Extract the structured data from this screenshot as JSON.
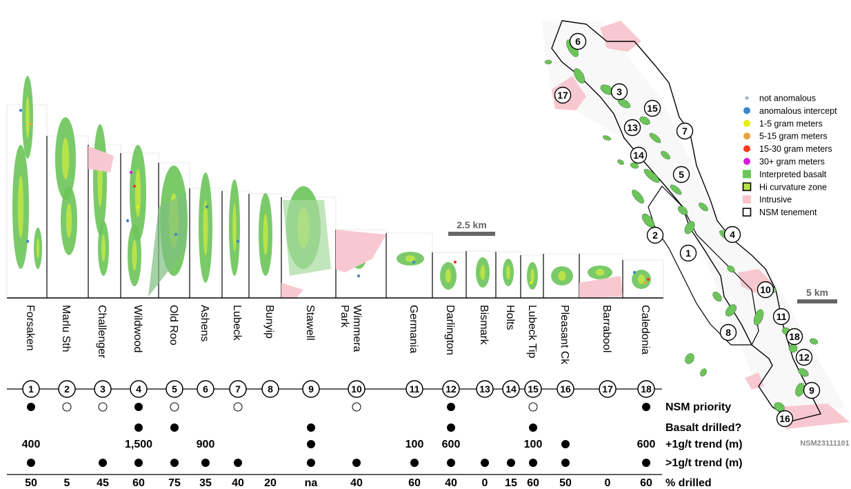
{
  "prospects": [
    {
      "num": "1",
      "name": "Forsaken",
      "priority": "filled",
      "basalt": "",
      "plus_trend": "400",
      "gt_trend": "filled",
      "pct": "50"
    },
    {
      "num": "2",
      "name": "Marlu Sth",
      "priority": "open",
      "basalt": "",
      "plus_trend": "",
      "gt_trend": "",
      "pct": "5"
    },
    {
      "num": "3",
      "name": "Challenger",
      "priority": "open",
      "basalt": "",
      "plus_trend": "",
      "gt_trend": "filled",
      "pct": "45"
    },
    {
      "num": "4",
      "name": "Wildwood",
      "priority": "filled",
      "basalt": "filled",
      "plus_trend": "1,500",
      "gt_trend": "filled",
      "pct": "60"
    },
    {
      "num": "5",
      "name": "Old Roo",
      "priority": "open",
      "basalt": "filled",
      "plus_trend": "",
      "gt_trend": "filled",
      "pct": "75"
    },
    {
      "num": "6",
      "name": "Ashens",
      "priority": "",
      "basalt": "",
      "plus_trend": "900",
      "gt_trend": "filled",
      "pct": "35"
    },
    {
      "num": "7",
      "name": "Lubeck",
      "priority": "open",
      "basalt": "",
      "plus_trend": "",
      "gt_trend": "filled",
      "pct": "40"
    },
    {
      "num": "8",
      "name": "Bunyip",
      "priority": "",
      "basalt": "",
      "plus_trend": "",
      "gt_trend": "",
      "pct": "20"
    },
    {
      "num": "9",
      "name": "Stawell",
      "priority": "",
      "basalt": "filled",
      "plus_trend": "dot",
      "gt_trend": "filled",
      "pct": "na"
    },
    {
      "num": "10",
      "name": "Wimmera Park",
      "priority": "open",
      "basalt": "",
      "plus_trend": "",
      "gt_trend": "filled",
      "pct": "40"
    },
    {
      "num": "11",
      "name": "Germania",
      "priority": "",
      "basalt": "",
      "plus_trend": "100",
      "gt_trend": "filled",
      "pct": "60"
    },
    {
      "num": "12",
      "name": "Darlington",
      "priority": "filled",
      "basalt": "filled",
      "plus_trend": "600",
      "gt_trend": "filled",
      "pct": "40"
    },
    {
      "num": "13",
      "name": "Bismark",
      "priority": "",
      "basalt": "",
      "plus_trend": "",
      "gt_trend": "filled",
      "pct": "0"
    },
    {
      "num": "14",
      "name": "Holts",
      "priority": "",
      "basalt": "",
      "plus_trend": "",
      "gt_trend": "filled",
      "pct": "15"
    },
    {
      "num": "15",
      "name": "Lubeck Tip",
      "priority": "open",
      "basalt": "filled",
      "plus_trend": "100",
      "gt_trend": "filled",
      "pct": "60"
    },
    {
      "num": "16",
      "name": "Pleasant Ck",
      "priority": "",
      "basalt": "",
      "plus_trend": "dot",
      "gt_trend": "filled",
      "pct": "50"
    },
    {
      "num": "17",
      "name": "Barrabool",
      "priority": "",
      "basalt": "",
      "plus_trend": "",
      "gt_trend": "",
      "pct": "0"
    },
    {
      "num": "18",
      "name": "Caledonia",
      "priority": "filled",
      "basalt": "",
      "plus_trend": "600",
      "gt_trend": "filled",
      "pct": "60"
    }
  ],
  "row_labels": {
    "priority": "NSM priority",
    "basalt": "Basalt drilled?",
    "plus_trend": "+1g/t trend (m)",
    "gt_trend": ">1g/t trend (m)",
    "pct": "% drilled"
  },
  "scale_strips": "2.5 km",
  "scale_map": "5 km",
  "map_labels": [
    "6",
    "17",
    "3",
    "15",
    "13",
    "7",
    "14",
    "5",
    "2",
    "1",
    "4",
    "10",
    "8",
    "11",
    "18",
    "12",
    "9",
    "16"
  ],
  "legend": {
    "items": [
      {
        "label": "not anomalous",
        "color": "#9fb3c8",
        "shape": "dot-small"
      },
      {
        "label": "anomalous intercept",
        "color": "#3a87c8",
        "shape": "dot"
      },
      {
        "label": "1-5 gram meters",
        "color": "#e4ee1a",
        "shape": "dot"
      },
      {
        "label": "5-15 gram meters",
        "color": "#f0a03c",
        "shape": "dot"
      },
      {
        "label": "15-30 gram meters",
        "color": "#f03c1e",
        "shape": "dot"
      },
      {
        "label": "30+ gram meters",
        "color": "#d81ad8",
        "shape": "dot"
      },
      {
        "label": "Interpreted basalt",
        "color": "#6cc45a",
        "shape": "box"
      },
      {
        "label": "Hi curvature zone",
        "color": "#b8e04a",
        "shape": "box-outline"
      },
      {
        "label": "Intrusive",
        "color": "#f8c4cc",
        "shape": "box"
      },
      {
        "label": "NSM tenement",
        "color": "#ffffff",
        "shape": "box-outline"
      }
    ]
  },
  "code": "NSM23111101",
  "colors": {
    "basalt": "#6cc45a",
    "basalt_light": "#a8dca0",
    "hi_curv": "#c8e840",
    "intrusive": "#f8c8d0"
  }
}
